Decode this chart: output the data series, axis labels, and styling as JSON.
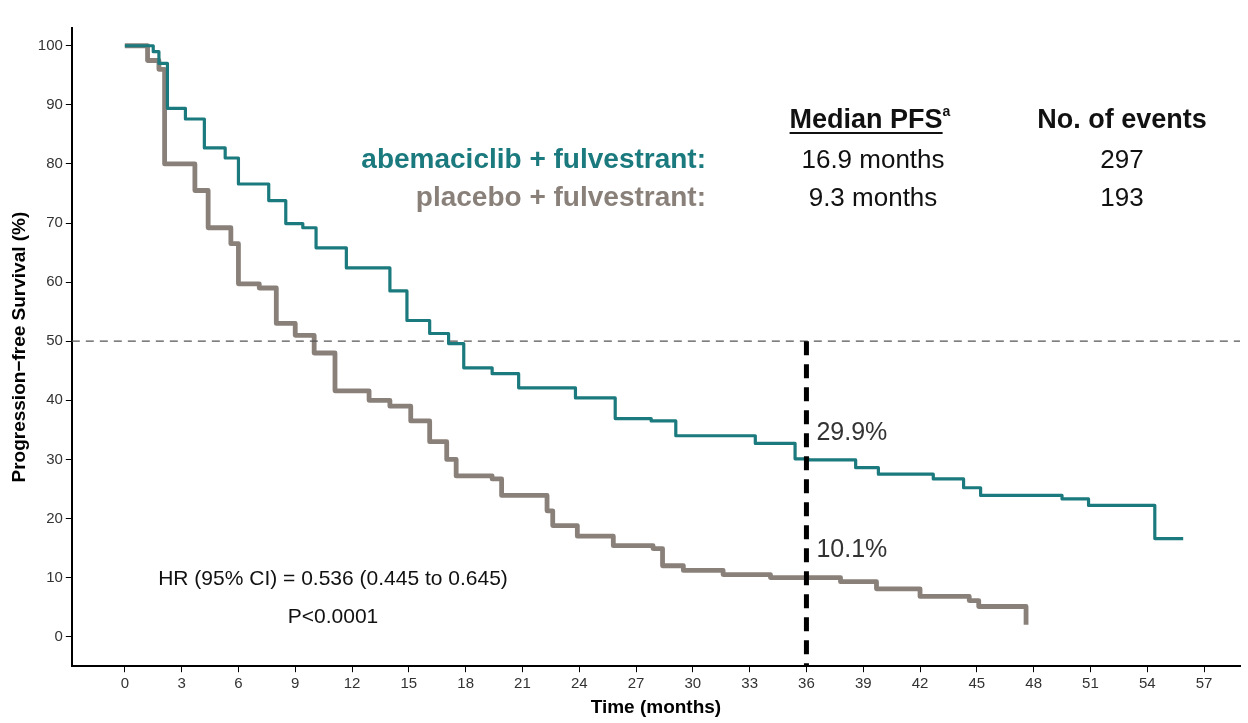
{
  "chart_data": {
    "type": "step",
    "xlabel": "Time (months)",
    "ylabel": "Progression−free Survival (%)",
    "xlim": [
      -2.8,
      58.9
    ],
    "ylim": [
      -5,
      103
    ],
    "xticks": [
      0,
      3,
      6,
      9,
      12,
      15,
      18,
      21,
      24,
      27,
      30,
      33,
      36,
      39,
      42,
      45,
      48,
      51,
      54,
      57
    ],
    "yticks": [
      0,
      10,
      20,
      30,
      40,
      50,
      60,
      70,
      80,
      90,
      100
    ],
    "grid": false,
    "legend": false,
    "marker": "none",
    "line_style": "solid",
    "series": [
      {
        "name": "abemaciclib + fulvestrant:",
        "color": "#1b7a7e",
        "x": [
          0,
          1.5,
          1.8,
          2.25,
          3.2,
          4.2,
          5.3,
          6.0,
          7.6,
          8.5,
          9.4,
          10.1,
          11.7,
          14.0,
          14.9,
          16.1,
          17.1,
          17.9,
          19.4,
          20.8,
          23.8,
          25.9,
          27.8,
          29.1,
          33.3,
          35.4,
          36.1,
          38.6,
          39.8,
          42.7,
          44.3,
          45.2,
          49.3,
          49.5,
          50.9,
          54.4,
          54.4,
          55.9
        ],
        "values": [
          100,
          99,
          97,
          89.4,
          87.6,
          82.7,
          81,
          76.6,
          73.8,
          69.9,
          69.2,
          65.8,
          62.4,
          58.5,
          53.5,
          51.3,
          49.6,
          45.5,
          44.5,
          42.1,
          40.4,
          36.9,
          36.5,
          34,
          32.7,
          30.1,
          29.9,
          28.6,
          27.5,
          26.7,
          25.2,
          23.9,
          23.9,
          23.3,
          22.2,
          22.2,
          16.6,
          16.6
        ]
      },
      {
        "name": "placebo + fulvestrant:",
        "color": "#8a807a",
        "x": [
          0,
          1.2,
          1.8,
          2.1,
          3.7,
          4.4,
          5.6,
          6.0,
          7.1,
          8.0,
          9.0,
          10.0,
          11.1,
          12.9,
          14.0,
          15.1,
          16.1,
          17.0,
          17.5,
          19.4,
          19.9,
          21.8,
          22.3,
          22.6,
          23.9,
          25.8,
          27.9,
          28.4,
          29.5,
          31.6,
          34.1,
          37.8,
          39.7,
          42.0,
          44.6,
          45.1,
          47.6,
          47.6
        ],
        "values": [
          100,
          97.5,
          96,
          80,
          75.5,
          69.2,
          66.5,
          59.7,
          59,
          53,
          51,
          48,
          41.6,
          40,
          39,
          36.5,
          33,
          30,
          27.2,
          26.7,
          23.9,
          23.9,
          21.3,
          18.8,
          17,
          15.4,
          14.9,
          12,
          11.2,
          10.5,
          10,
          9.3,
          8.1,
          6.8,
          6.1,
          5.1,
          5.1,
          2.0
        ]
      }
    ],
    "ref_lines": [
      {
        "axis": "y",
        "value": 50,
        "color": "#555555",
        "line_style": "dashed"
      },
      {
        "axis": "x",
        "value": 36,
        "color": "#000000",
        "line_style": "dashed"
      }
    ],
    "annotations": [
      "Median PFS$^{a}$",
      "No. of events",
      "16.9 months",
      "297",
      "9.3 months",
      "193",
      "HR (95% CI) = 0.536 (0.445 to 0.645)",
      "P<0.0001",
      {
        "text": "29.9%",
        "x": 36,
        "y": 29.9
      },
      {
        "text": "10.1%",
        "x": 36,
        "y": 10.1
      }
    ]
  }
}
